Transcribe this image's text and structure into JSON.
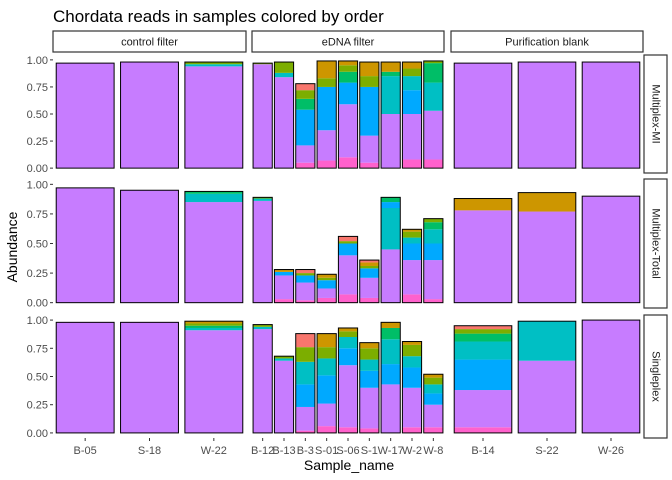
{
  "chart_data": {
    "type": "bar",
    "title": "Chordata reads in samples colored by order",
    "xlabel": "Sample_name",
    "ylabel": "Abundance",
    "ylim": [
      0,
      1
    ],
    "y_ticks": [
      "0.00",
      "0.25",
      "0.50",
      "0.75",
      "1.00"
    ],
    "col_facets": [
      "control filter",
      "eDNA filter",
      "Purification blank"
    ],
    "row_facets": [
      "Multiplex-MI",
      "Multiplex-Total",
      "Singleplex"
    ],
    "categories": [
      [
        "B-05",
        "S-18",
        "W-22"
      ],
      [
        "B-12",
        "B-13",
        "B-3",
        "S-01",
        "S-06",
        "S-1",
        "W-17",
        "W-2",
        "W-8"
      ],
      [
        "B-14",
        "S-22",
        "W-26"
      ]
    ],
    "tick_labels": [
      [
        "B-05",
        "S-18",
        "W-22"
      ],
      [
        "B-12",
        "B-13",
        "B-3",
        "S-01",
        "S-06",
        "S-1",
        "W-17",
        "W-2",
        "W-8"
      ],
      [
        "B-14",
        "S-22",
        "W-26"
      ]
    ],
    "palette": [
      "#f8766d",
      "#cd9600",
      "#7cae00",
      "#00be67",
      "#00bfc4",
      "#00a9ff",
      "#c77cff",
      "#ff61cc"
    ],
    "panels": [
      [
        [
          [
            [
              0.97,
              "#c77cff"
            ]
          ],
          [
            [
              0.98,
              "#c77cff"
            ]
          ],
          [
            [
              0.94,
              "#c77cff"
            ],
            [
              0.02,
              "#00bfc4"
            ],
            [
              0.02,
              "#7cae00"
            ]
          ]
        ],
        [
          [
            [
              0.96,
              "#c77cff"
            ],
            [
              0.01,
              "#7cae00"
            ]
          ],
          [
            [
              0.84,
              "#c77cff"
            ],
            [
              0.04,
              "#00bfc4"
            ],
            [
              0.1,
              "#7cae00"
            ]
          ],
          [
            [
              0.05,
              "#ff61cc"
            ],
            [
              0.16,
              "#c77cff"
            ],
            [
              0.33,
              "#00a9ff"
            ],
            [
              0.1,
              "#00be67"
            ],
            [
              0.08,
              "#7cae00"
            ],
            [
              0.06,
              "#f8766d"
            ]
          ],
          [
            [
              0.07,
              "#ff61cc"
            ],
            [
              0.28,
              "#c77cff"
            ],
            [
              0.4,
              "#00a9ff"
            ],
            [
              0.08,
              "#7cae00"
            ],
            [
              0.16,
              "#cd9600"
            ]
          ],
          [
            [
              0.1,
              "#ff61cc"
            ],
            [
              0.49,
              "#c77cff"
            ],
            [
              0.2,
              "#00a9ff"
            ],
            [
              0.1,
              "#00be67"
            ],
            [
              0.06,
              "#7cae00"
            ],
            [
              0.04,
              "#cd9600"
            ]
          ],
          [
            [
              0.05,
              "#ff61cc"
            ],
            [
              0.25,
              "#c77cff"
            ],
            [
              0.45,
              "#00a9ff"
            ],
            [
              0.1,
              "#7cae00"
            ],
            [
              0.13,
              "#cd9600"
            ]
          ],
          [
            [
              0.5,
              "#c77cff"
            ],
            [
              0.35,
              "#00bfc4"
            ],
            [
              0.04,
              "#00be67"
            ],
            [
              0.09,
              "#cd9600"
            ]
          ],
          [
            [
              0.08,
              "#ff61cc"
            ],
            [
              0.42,
              "#c77cff"
            ],
            [
              0.22,
              "#00a9ff"
            ],
            [
              0.13,
              "#00bfc4"
            ],
            [
              0.07,
              "#7cae00"
            ],
            [
              0.06,
              "#cd9600"
            ]
          ],
          [
            [
              0.08,
              "#ff61cc"
            ],
            [
              0.45,
              "#c77cff"
            ],
            [
              0.26,
              "#00bfc4"
            ],
            [
              0.18,
              "#00be67"
            ],
            [
              0.02,
              "#7cae00"
            ]
          ]
        ],
        [
          [
            [
              0.97,
              "#c77cff"
            ]
          ],
          [
            [
              0.98,
              "#c77cff"
            ]
          ],
          [
            [
              0.98,
              "#c77cff"
            ]
          ]
        ]
      ],
      [
        [
          [
            [
              0.97,
              "#c77cff"
            ]
          ],
          [
            [
              0.95,
              "#c77cff"
            ]
          ],
          [
            [
              0.85,
              "#c77cff"
            ],
            [
              0.07,
              "#00bfc4"
            ],
            [
              0.02,
              "#00be67"
            ]
          ]
        ],
        [
          [
            [
              0.86,
              "#c77cff"
            ],
            [
              0.02,
              "#00bfc4"
            ],
            [
              0.01,
              "#7cae00"
            ]
          ],
          [
            [
              0.03,
              "#ff61cc"
            ],
            [
              0.2,
              "#c77cff"
            ],
            [
              0.03,
              "#00a9ff"
            ],
            [
              0.02,
              "#cd9600"
            ]
          ],
          [
            [
              0.02,
              "#ff61cc"
            ],
            [
              0.15,
              "#c77cff"
            ],
            [
              0.06,
              "#00a9ff"
            ],
            [
              0.02,
              "#7cae00"
            ],
            [
              0.03,
              "#f8766d"
            ]
          ],
          [
            [
              0.04,
              "#ff61cc"
            ],
            [
              0.08,
              "#c77cff"
            ],
            [
              0.07,
              "#00a9ff"
            ],
            [
              0.02,
              "#7cae00"
            ],
            [
              0.03,
              "#cd9600"
            ]
          ],
          [
            [
              0.07,
              "#ff61cc"
            ],
            [
              0.33,
              "#c77cff"
            ],
            [
              0.1,
              "#00a9ff"
            ],
            [
              0.02,
              "#7cae00"
            ],
            [
              0.04,
              "#f8766d"
            ]
          ],
          [
            [
              0.04,
              "#ff61cc"
            ],
            [
              0.17,
              "#c77cff"
            ],
            [
              0.08,
              "#00a9ff"
            ],
            [
              0.02,
              "#7cae00"
            ],
            [
              0.03,
              "#cd9600"
            ],
            [
              0.02,
              "#f8766d"
            ]
          ],
          [
            [
              0.45,
              "#c77cff"
            ],
            [
              0.35,
              "#00bfc4"
            ],
            [
              0.05,
              "#00a9ff"
            ],
            [
              0.04,
              "#00be67"
            ]
          ],
          [
            [
              0.07,
              "#ff61cc"
            ],
            [
              0.29,
              "#c77cff"
            ],
            [
              0.14,
              "#00a9ff"
            ],
            [
              0.05,
              "#00bfc4"
            ],
            [
              0.05,
              "#7cae00"
            ],
            [
              0.02,
              "#cd9600"
            ]
          ],
          [
            [
              0.03,
              "#ff61cc"
            ],
            [
              0.33,
              "#c77cff"
            ],
            [
              0.14,
              "#00a9ff"
            ],
            [
              0.12,
              "#00bfc4"
            ],
            [
              0.06,
              "#00be67"
            ],
            [
              0.03,
              "#7cae00"
            ]
          ]
        ],
        [
          [
            [
              0.78,
              "#c77cff"
            ],
            [
              0.1,
              "#cd9600"
            ]
          ],
          [
            [
              0.77,
              "#c77cff"
            ],
            [
              0.16,
              "#cd9600"
            ]
          ],
          [
            [
              0.9,
              "#c77cff"
            ]
          ]
        ]
      ],
      [
        [
          [
            [
              0.98,
              "#c77cff"
            ]
          ],
          [
            [
              0.98,
              "#c77cff"
            ]
          ],
          [
            [
              0.91,
              "#c77cff"
            ],
            [
              0.02,
              "#00bfc4"
            ],
            [
              0.02,
              "#00be67"
            ],
            [
              0.02,
              "#7cae00"
            ],
            [
              0.02,
              "#cd9600"
            ]
          ]
        ],
        [
          [
            [
              0.92,
              "#c77cff"
            ],
            [
              0.02,
              "#00bfc4"
            ],
            [
              0.02,
              "#7cae00"
            ]
          ],
          [
            [
              0.64,
              "#c77cff"
            ],
            [
              0.02,
              "#00bfc4"
            ],
            [
              0.02,
              "#7cae00"
            ]
          ],
          [
            [
              0.02,
              "#ff61cc"
            ],
            [
              0.21,
              "#c77cff"
            ],
            [
              0.2,
              "#00a9ff"
            ],
            [
              0.2,
              "#00bfc4"
            ],
            [
              0.13,
              "#7cae00"
            ],
            [
              0.12,
              "#f8766d"
            ]
          ],
          [
            [
              0.06,
              "#ff61cc"
            ],
            [
              0.2,
              "#c77cff"
            ],
            [
              0.25,
              "#00a9ff"
            ],
            [
              0.15,
              "#00bfc4"
            ],
            [
              0.1,
              "#7cae00"
            ],
            [
              0.12,
              "#cd9600"
            ]
          ],
          [
            [
              0.05,
              "#ff61cc"
            ],
            [
              0.55,
              "#c77cff"
            ],
            [
              0.15,
              "#00a9ff"
            ],
            [
              0.1,
              "#00bfc4"
            ],
            [
              0.05,
              "#7cae00"
            ],
            [
              0.03,
              "#cd9600"
            ]
          ],
          [
            [
              0.04,
              "#ff61cc"
            ],
            [
              0.36,
              "#c77cff"
            ],
            [
              0.15,
              "#00a9ff"
            ],
            [
              0.1,
              "#00bfc4"
            ],
            [
              0.1,
              "#7cae00"
            ],
            [
              0.05,
              "#cd9600"
            ]
          ],
          [
            [
              0.43,
              "#c77cff"
            ],
            [
              0.18,
              "#00a9ff"
            ],
            [
              0.22,
              "#00bfc4"
            ],
            [
              0.1,
              "#00be67"
            ],
            [
              0.05,
              "#cd9600"
            ]
          ],
          [
            [
              0.05,
              "#ff61cc"
            ],
            [
              0.35,
              "#c77cff"
            ],
            [
              0.18,
              "#00a9ff"
            ],
            [
              0.1,
              "#00bfc4"
            ],
            [
              0.1,
              "#7cae00"
            ],
            [
              0.03,
              "#cd9600"
            ]
          ],
          [
            [
              0.05,
              "#ff61cc"
            ],
            [
              0.2,
              "#c77cff"
            ],
            [
              0.1,
              "#00a9ff"
            ],
            [
              0.08,
              "#00bfc4"
            ],
            [
              0.06,
              "#7cae00"
            ],
            [
              0.03,
              "#cd9600"
            ]
          ]
        ],
        [
          [
            [
              0.05,
              "#ff61cc"
            ],
            [
              0.33,
              "#c77cff"
            ],
            [
              0.27,
              "#00a9ff"
            ],
            [
              0.16,
              "#00bfc4"
            ],
            [
              0.07,
              "#00be67"
            ],
            [
              0.04,
              "#7cae00"
            ],
            [
              0.03,
              "#f8766d"
            ]
          ],
          [
            [
              0.64,
              "#c77cff"
            ],
            [
              0.35,
              "#00bfc4"
            ]
          ],
          [
            [
              1.0,
              "#c77cff"
            ]
          ]
        ]
      ]
    ]
  }
}
